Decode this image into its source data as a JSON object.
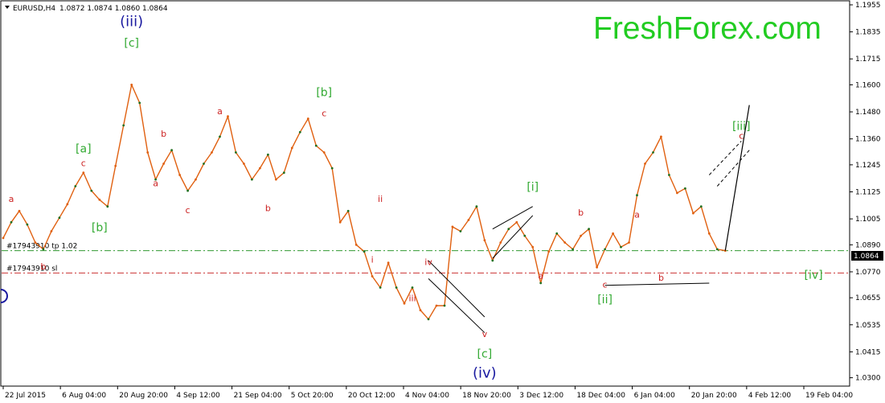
{
  "header": {
    "symbol_label": "EURUSD,H4",
    "ohlc": "1.0872 1.0874 1.0860 1.0864"
  },
  "brand": {
    "name": "FreshForex.com",
    "color": "#22cc22"
  },
  "order_lines": [
    {
      "label": "#17943910 tp 1.02",
      "price": 1.0864,
      "color": "#339933",
      "style": "dash-dot"
    },
    {
      "label": "#17943910 sl",
      "price": 1.0765,
      "color": "#cc3333",
      "style": "dash-dot"
    }
  ],
  "chart_data": {
    "type": "line",
    "title": "",
    "symbol": "EURUSD",
    "timeframe": "H4",
    "ylim": [
      1.027,
      1.1955
    ],
    "y_ticks": [
      "1.1955",
      "1.1835",
      "1.1715",
      "1.1600",
      "1.1480",
      "1.1360",
      "1.1245",
      "1.1125",
      "1.1005",
      "1.0890",
      "1.0770",
      "1.0655",
      "1.0535",
      "1.0415",
      "1.0300"
    ],
    "current_price": "1.0864",
    "x_ticks": [
      "22 Jul 2015",
      "6 Aug 04:00",
      "20 Aug 20:00",
      "4 Sep 12:00",
      "21 Sep 04:00",
      "5 Oct 20:00",
      "20 Oct 12:00",
      "4 Nov 04:00",
      "18 Nov 20:00",
      "3 Dec 12:00",
      "18 Dec 04:00",
      "6 Jan 04:00",
      "20 Jan 20:00",
      "4 Feb 12:00",
      "19 Feb 04:00"
    ],
    "series": [
      {
        "values": [
          [
            0,
            1.092
          ],
          [
            1,
            1.099
          ],
          [
            2,
            1.104
          ],
          [
            3,
            1.098
          ],
          [
            4,
            1.09
          ],
          [
            5,
            1.087
          ],
          [
            6,
            1.095
          ],
          [
            7,
            1.101
          ],
          [
            8,
            1.107
          ],
          [
            9,
            1.115
          ],
          [
            10,
            1.121
          ],
          [
            11,
            1.113
          ],
          [
            12,
            1.109
          ],
          [
            13,
            1.106
          ],
          [
            14,
            1.124
          ],
          [
            15,
            1.142
          ],
          [
            16,
            1.16
          ],
          [
            17,
            1.152
          ],
          [
            18,
            1.13
          ],
          [
            19,
            1.118
          ],
          [
            20,
            1.125
          ],
          [
            21,
            1.131
          ],
          [
            22,
            1.12
          ],
          [
            23,
            1.113
          ],
          [
            24,
            1.118
          ],
          [
            25,
            1.125
          ],
          [
            26,
            1.13
          ],
          [
            27,
            1.137
          ],
          [
            28,
            1.146
          ],
          [
            29,
            1.13
          ],
          [
            30,
            1.125
          ],
          [
            31,
            1.118
          ],
          [
            32,
            1.123
          ],
          [
            33,
            1.129
          ],
          [
            34,
            1.118
          ],
          [
            35,
            1.121
          ],
          [
            36,
            1.132
          ],
          [
            37,
            1.139
          ],
          [
            38,
            1.145
          ],
          [
            39,
            1.133
          ],
          [
            40,
            1.13
          ],
          [
            41,
            1.123
          ],
          [
            42,
            1.099
          ],
          [
            43,
            1.104
          ],
          [
            44,
            1.089
          ],
          [
            45,
            1.086
          ],
          [
            46,
            1.075
          ],
          [
            47,
            1.07
          ],
          [
            48,
            1.081
          ],
          [
            49,
            1.07
          ],
          [
            50,
            1.063
          ],
          [
            51,
            1.07
          ],
          [
            52,
            1.06
          ],
          [
            53,
            1.056
          ],
          [
            54,
            1.062
          ],
          [
            55,
            1.062
          ],
          [
            56,
            1.097
          ],
          [
            57,
            1.095
          ],
          [
            58,
            1.1
          ],
          [
            59,
            1.106
          ],
          [
            60,
            1.091
          ],
          [
            61,
            1.082
          ],
          [
            62,
            1.09
          ],
          [
            63,
            1.096
          ],
          [
            64,
            1.099
          ],
          [
            65,
            1.093
          ],
          [
            66,
            1.088
          ],
          [
            67,
            1.072
          ],
          [
            68,
            1.086
          ],
          [
            69,
            1.094
          ],
          [
            70,
            1.09
          ],
          [
            71,
            1.087
          ],
          [
            72,
            1.093
          ],
          [
            73,
            1.096
          ],
          [
            74,
            1.079
          ],
          [
            75,
            1.087
          ],
          [
            76,
            1.094
          ],
          [
            77,
            1.088
          ],
          [
            78,
            1.09
          ],
          [
            79,
            1.111
          ],
          [
            80,
            1.125
          ],
          [
            81,
            1.13
          ],
          [
            82,
            1.137
          ],
          [
            83,
            1.12
          ],
          [
            84,
            1.112
          ],
          [
            85,
            1.114
          ],
          [
            86,
            1.103
          ],
          [
            87,
            1.106
          ],
          [
            88,
            1.094
          ],
          [
            89,
            1.087
          ],
          [
            90,
            1.0864
          ]
        ]
      },
      {
        "name": "projection",
        "values": [
          [
            90,
            1.0864
          ],
          [
            93,
            1.151
          ]
        ]
      }
    ],
    "wave_labels": [
      {
        "text": "(iii)",
        "i": 16,
        "price": 1.186,
        "color": "#1a1aa0",
        "size": "big"
      },
      {
        "text": "[c]",
        "i": 16,
        "price": 1.177,
        "color": "#33aa33",
        "size": "mid"
      },
      {
        "text": "[a]",
        "i": 10,
        "price": 1.13,
        "color": "#33aa33",
        "size": "mid"
      },
      {
        "text": "c",
        "i": 10,
        "price": 1.124,
        "color": "#cc2222",
        "size": "small"
      },
      {
        "text": "a",
        "i": 1,
        "price": 1.108,
        "color": "#cc2222",
        "size": "small"
      },
      {
        "text": "b",
        "i": 5,
        "price": 1.078,
        "color": "#cc2222",
        "size": "small"
      },
      {
        "text": "[b]",
        "i": 12,
        "price": 1.095,
        "color": "#33aa33",
        "size": "mid"
      },
      {
        "text": "b",
        "i": 20,
        "price": 1.137,
        "color": "#cc2222",
        "size": "small"
      },
      {
        "text": "a",
        "i": 19,
        "price": 1.115,
        "color": "#cc2222",
        "size": "small"
      },
      {
        "text": "c",
        "i": 23,
        "price": 1.103,
        "color": "#cc2222",
        "size": "small"
      },
      {
        "text": "a",
        "i": 27,
        "price": 1.147,
        "color": "#cc2222",
        "size": "small"
      },
      {
        "text": "b",
        "i": 33,
        "price": 1.104,
        "color": "#cc2222",
        "size": "small"
      },
      {
        "text": "[b]",
        "i": 40,
        "price": 1.155,
        "color": "#33aa33",
        "size": "mid"
      },
      {
        "text": "c",
        "i": 40,
        "price": 1.146,
        "color": "#cc2222",
        "size": "small"
      },
      {
        "text": "ii",
        "i": 47,
        "price": 1.108,
        "color": "#cc2222",
        "size": "small"
      },
      {
        "text": "i",
        "i": 46,
        "price": 1.081,
        "color": "#cc2222",
        "size": "small"
      },
      {
        "text": "iv",
        "i": 53,
        "price": 1.08,
        "color": "#cc2222",
        "size": "small"
      },
      {
        "text": "iii",
        "i": 51,
        "price": 1.064,
        "color": "#cc2222",
        "size": "small"
      },
      {
        "text": "v",
        "i": 60,
        "price": 1.048,
        "color": "#cc2222",
        "size": "small"
      },
      {
        "text": "[c]",
        "i": 60,
        "price": 1.039,
        "color": "#33aa33",
        "size": "mid"
      },
      {
        "text": "(iv)",
        "i": 60,
        "price": 1.03,
        "color": "#1a1aa0",
        "size": "big"
      },
      {
        "text": "[i]",
        "i": 66,
        "price": 1.113,
        "color": "#33aa33",
        "size": "mid"
      },
      {
        "text": "a",
        "i": 67,
        "price": 1.074,
        "color": "#cc2222",
        "size": "small"
      },
      {
        "text": "b",
        "i": 72,
        "price": 1.102,
        "color": "#cc2222",
        "size": "small"
      },
      {
        "text": "c",
        "i": 75,
        "price": 1.07,
        "color": "#cc2222",
        "size": "small"
      },
      {
        "text": "[ii]",
        "i": 75,
        "price": 1.063,
        "color": "#33aa33",
        "size": "mid"
      },
      {
        "text": "a",
        "i": 79,
        "price": 1.101,
        "color": "#cc2222",
        "size": "small"
      },
      {
        "text": "b",
        "i": 82,
        "price": 1.073,
        "color": "#cc2222",
        "size": "small"
      },
      {
        "text": "[iii]",
        "i": 92,
        "price": 1.14,
        "color": "#33aa33",
        "size": "mid"
      },
      {
        "text": "c",
        "i": 92,
        "price": 1.136,
        "color": "#cc2222",
        "size": "small"
      },
      {
        "text": "[iv]",
        "i": 101,
        "price": 1.074,
        "color": "#33aa33",
        "size": "mid"
      }
    ]
  }
}
